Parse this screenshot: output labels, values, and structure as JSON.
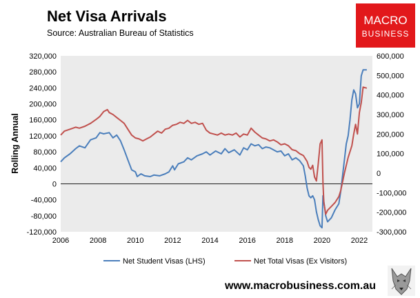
{
  "header": {
    "title": "Net Visa Arrivals",
    "source": "Source: Australian Bureau of Statistics"
  },
  "logo": {
    "line1": "MACRO",
    "line2": "BUSINESS",
    "bg_color": "#e2181b"
  },
  "footer": {
    "website": "www.macrobusiness.com.au",
    "wolf_icon": "wolf-head-icon"
  },
  "chart_data": {
    "type": "line",
    "title": "",
    "xlabel": "",
    "ylabel": "Rolling Annual",
    "x_ticks": [
      "2006",
      "2008",
      "2010",
      "2012",
      "2014",
      "2016",
      "2018",
      "2020",
      "2022"
    ],
    "xlim": [
      2006,
      2022.7
    ],
    "y_left": {
      "range": [
        -120000,
        320000
      ],
      "ticks": [
        "-120,000",
        "-80,000",
        "-40,000",
        "0",
        "40,000",
        "80,000",
        "120,000",
        "160,000",
        "200,000",
        "240,000",
        "280,000",
        "320,000"
      ]
    },
    "y_right": {
      "range": [
        -300000,
        600000
      ],
      "ticks": [
        "-300,000",
        "-200,000",
        "-100,000",
        "0",
        "100,000",
        "200,000",
        "300,000",
        "400,000",
        "500,000",
        "600,000"
      ]
    },
    "grid": false,
    "background": "#ebebeb",
    "legend_position": "bottom",
    "series": [
      {
        "name": "Net Student Visas (LHS)",
        "axis": "left",
        "color": "#4a7ebb",
        "points": [
          [
            2006.0,
            55000
          ],
          [
            2006.2,
            65000
          ],
          [
            2006.5,
            75000
          ],
          [
            2006.8,
            88000
          ],
          [
            2007.0,
            95000
          ],
          [
            2007.3,
            90000
          ],
          [
            2007.6,
            110000
          ],
          [
            2007.9,
            115000
          ],
          [
            2008.1,
            128000
          ],
          [
            2008.3,
            125000
          ],
          [
            2008.6,
            128000
          ],
          [
            2008.8,
            115000
          ],
          [
            2009.0,
            122000
          ],
          [
            2009.2,
            108000
          ],
          [
            2009.4,
            85000
          ],
          [
            2009.6,
            60000
          ],
          [
            2009.8,
            35000
          ],
          [
            2010.0,
            30000
          ],
          [
            2010.1,
            18000
          ],
          [
            2010.3,
            25000
          ],
          [
            2010.5,
            20000
          ],
          [
            2010.8,
            18000
          ],
          [
            2011.0,
            22000
          ],
          [
            2011.3,
            20000
          ],
          [
            2011.6,
            25000
          ],
          [
            2011.8,
            30000
          ],
          [
            2012.0,
            45000
          ],
          [
            2012.1,
            35000
          ],
          [
            2012.3,
            50000
          ],
          [
            2012.6,
            55000
          ],
          [
            2012.8,
            65000
          ],
          [
            2013.0,
            60000
          ],
          [
            2013.3,
            70000
          ],
          [
            2013.6,
            75000
          ],
          [
            2013.8,
            80000
          ],
          [
            2014.0,
            72000
          ],
          [
            2014.3,
            82000
          ],
          [
            2014.6,
            75000
          ],
          [
            2014.8,
            88000
          ],
          [
            2015.0,
            78000
          ],
          [
            2015.3,
            85000
          ],
          [
            2015.6,
            72000
          ],
          [
            2015.8,
            90000
          ],
          [
            2016.0,
            85000
          ],
          [
            2016.2,
            100000
          ],
          [
            2016.4,
            95000
          ],
          [
            2016.6,
            98000
          ],
          [
            2016.8,
            88000
          ],
          [
            2017.0,
            92000
          ],
          [
            2017.2,
            90000
          ],
          [
            2017.4,
            85000
          ],
          [
            2017.6,
            80000
          ],
          [
            2017.8,
            82000
          ],
          [
            2018.0,
            70000
          ],
          [
            2018.2,
            75000
          ],
          [
            2018.4,
            60000
          ],
          [
            2018.6,
            65000
          ],
          [
            2018.8,
            58000
          ],
          [
            2019.0,
            45000
          ],
          [
            2019.1,
            20000
          ],
          [
            2019.2,
            -10000
          ],
          [
            2019.3,
            -30000
          ],
          [
            2019.4,
            -35000
          ],
          [
            2019.5,
            -30000
          ],
          [
            2019.6,
            -40000
          ],
          [
            2019.7,
            -70000
          ],
          [
            2019.8,
            -90000
          ],
          [
            2019.9,
            -105000
          ],
          [
            2020.0,
            -110000
          ],
          [
            2020.05,
            -30000
          ],
          [
            2020.1,
            -45000
          ],
          [
            2020.2,
            -80000
          ],
          [
            2020.3,
            -95000
          ],
          [
            2020.5,
            -85000
          ],
          [
            2020.7,
            -65000
          ],
          [
            2020.9,
            -50000
          ],
          [
            2021.0,
            -20000
          ],
          [
            2021.1,
            20000
          ],
          [
            2021.2,
            60000
          ],
          [
            2021.3,
            100000
          ],
          [
            2021.4,
            120000
          ],
          [
            2021.5,
            160000
          ],
          [
            2021.6,
            210000
          ],
          [
            2021.7,
            235000
          ],
          [
            2021.8,
            225000
          ],
          [
            2021.9,
            190000
          ],
          [
            2022.0,
            200000
          ],
          [
            2022.1,
            270000
          ],
          [
            2022.2,
            285000
          ],
          [
            2022.4,
            285000
          ]
        ]
      },
      {
        "name": "Net Total Visas (Ex Visitors)",
        "axis": "right",
        "color": "#c0504d",
        "points": [
          [
            2006.0,
            195000
          ],
          [
            2006.2,
            215000
          ],
          [
            2006.5,
            225000
          ],
          [
            2006.8,
            235000
          ],
          [
            2007.0,
            230000
          ],
          [
            2007.3,
            240000
          ],
          [
            2007.6,
            255000
          ],
          [
            2007.9,
            275000
          ],
          [
            2008.1,
            290000
          ],
          [
            2008.3,
            315000
          ],
          [
            2008.5,
            325000
          ],
          [
            2008.6,
            310000
          ],
          [
            2008.8,
            300000
          ],
          [
            2009.0,
            285000
          ],
          [
            2009.2,
            270000
          ],
          [
            2009.4,
            255000
          ],
          [
            2009.6,
            225000
          ],
          [
            2009.8,
            195000
          ],
          [
            2010.0,
            180000
          ],
          [
            2010.2,
            175000
          ],
          [
            2010.4,
            165000
          ],
          [
            2010.6,
            175000
          ],
          [
            2010.8,
            185000
          ],
          [
            2011.0,
            200000
          ],
          [
            2011.2,
            215000
          ],
          [
            2011.4,
            205000
          ],
          [
            2011.6,
            225000
          ],
          [
            2011.8,
            230000
          ],
          [
            2012.0,
            245000
          ],
          [
            2012.2,
            250000
          ],
          [
            2012.4,
            260000
          ],
          [
            2012.6,
            255000
          ],
          [
            2012.8,
            270000
          ],
          [
            2013.0,
            255000
          ],
          [
            2013.2,
            260000
          ],
          [
            2013.4,
            250000
          ],
          [
            2013.6,
            255000
          ],
          [
            2013.8,
            220000
          ],
          [
            2014.0,
            205000
          ],
          [
            2014.2,
            200000
          ],
          [
            2014.4,
            195000
          ],
          [
            2014.6,
            205000
          ],
          [
            2014.8,
            195000
          ],
          [
            2015.0,
            200000
          ],
          [
            2015.2,
            195000
          ],
          [
            2015.4,
            205000
          ],
          [
            2015.6,
            185000
          ],
          [
            2015.8,
            200000
          ],
          [
            2016.0,
            195000
          ],
          [
            2016.2,
            230000
          ],
          [
            2016.4,
            210000
          ],
          [
            2016.6,
            195000
          ],
          [
            2016.8,
            180000
          ],
          [
            2017.0,
            175000
          ],
          [
            2017.2,
            165000
          ],
          [
            2017.4,
            170000
          ],
          [
            2017.6,
            160000
          ],
          [
            2017.8,
            145000
          ],
          [
            2018.0,
            150000
          ],
          [
            2018.2,
            140000
          ],
          [
            2018.4,
            120000
          ],
          [
            2018.6,
            115000
          ],
          [
            2018.8,
            100000
          ],
          [
            2019.0,
            90000
          ],
          [
            2019.2,
            60000
          ],
          [
            2019.3,
            30000
          ],
          [
            2019.4,
            20000
          ],
          [
            2019.5,
            40000
          ],
          [
            2019.6,
            -20000
          ],
          [
            2019.7,
            -40000
          ],
          [
            2019.8,
            50000
          ],
          [
            2019.9,
            150000
          ],
          [
            2020.0,
            170000
          ],
          [
            2020.05,
            -50000
          ],
          [
            2020.1,
            -150000
          ],
          [
            2020.2,
            -210000
          ],
          [
            2020.3,
            -190000
          ],
          [
            2020.5,
            -170000
          ],
          [
            2020.7,
            -150000
          ],
          [
            2020.9,
            -120000
          ],
          [
            2021.0,
            -90000
          ],
          [
            2021.2,
            0
          ],
          [
            2021.4,
            80000
          ],
          [
            2021.6,
            140000
          ],
          [
            2021.7,
            200000
          ],
          [
            2021.8,
            250000
          ],
          [
            2021.9,
            200000
          ],
          [
            2022.0,
            310000
          ],
          [
            2022.1,
            360000
          ],
          [
            2022.2,
            440000
          ],
          [
            2022.4,
            435000
          ]
        ]
      }
    ]
  }
}
